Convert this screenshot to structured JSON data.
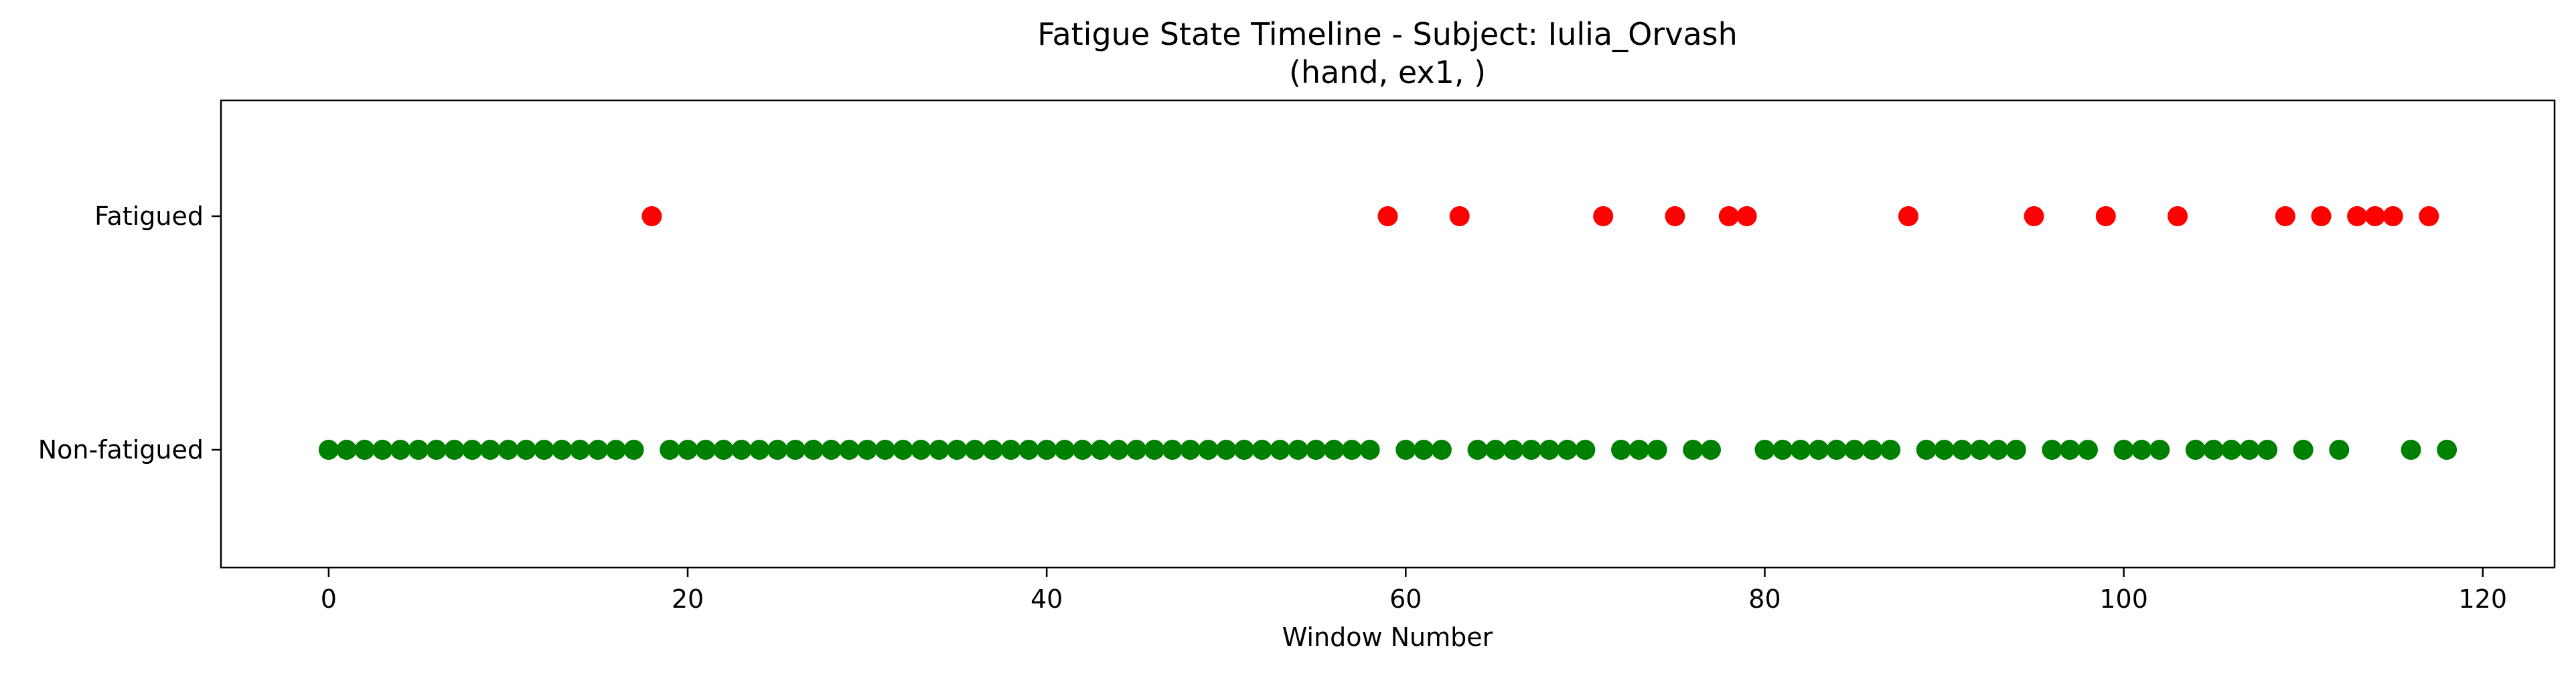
{
  "chart_data": {
    "type": "scatter",
    "title_line1": "Fatigue State Timeline - Subject: Iulia_Orvash",
    "title_line2": "(hand, ex1, )",
    "xlabel": "Window Number",
    "ylabel": "",
    "xlim": [
      -6,
      124
    ],
    "x_ticks": [
      0,
      20,
      40,
      60,
      80,
      100,
      120
    ],
    "y_categories": [
      "Non-fatigued",
      "Fatigued"
    ],
    "grid": false,
    "legend": "none",
    "colors": {
      "Fatigued": "#ff0000",
      "Non-fatigued": "#008000"
    },
    "series": [
      {
        "state": "Fatigued",
        "x": [
          18,
          59,
          63,
          71,
          75,
          78,
          79,
          88,
          95,
          99,
          103,
          109,
          111,
          113,
          114,
          115,
          117
        ]
      },
      {
        "state": "Non-fatigued",
        "x": [
          0,
          1,
          2,
          3,
          4,
          5,
          6,
          7,
          8,
          9,
          10,
          11,
          12,
          13,
          14,
          15,
          16,
          17,
          19,
          20,
          21,
          22,
          23,
          24,
          25,
          26,
          27,
          28,
          29,
          30,
          31,
          32,
          33,
          34,
          35,
          36,
          37,
          38,
          39,
          40,
          41,
          42,
          43,
          44,
          45,
          46,
          47,
          48,
          49,
          50,
          51,
          52,
          53,
          54,
          55,
          56,
          57,
          58,
          60,
          61,
          62,
          64,
          65,
          66,
          67,
          68,
          69,
          70,
          72,
          73,
          74,
          76,
          77,
          80,
          81,
          82,
          83,
          84,
          85,
          86,
          87,
          89,
          90,
          91,
          92,
          93,
          94,
          96,
          97,
          98,
          100,
          101,
          102,
          104,
          105,
          106,
          107,
          108,
          110,
          112,
          116,
          118
        ]
      }
    ]
  }
}
